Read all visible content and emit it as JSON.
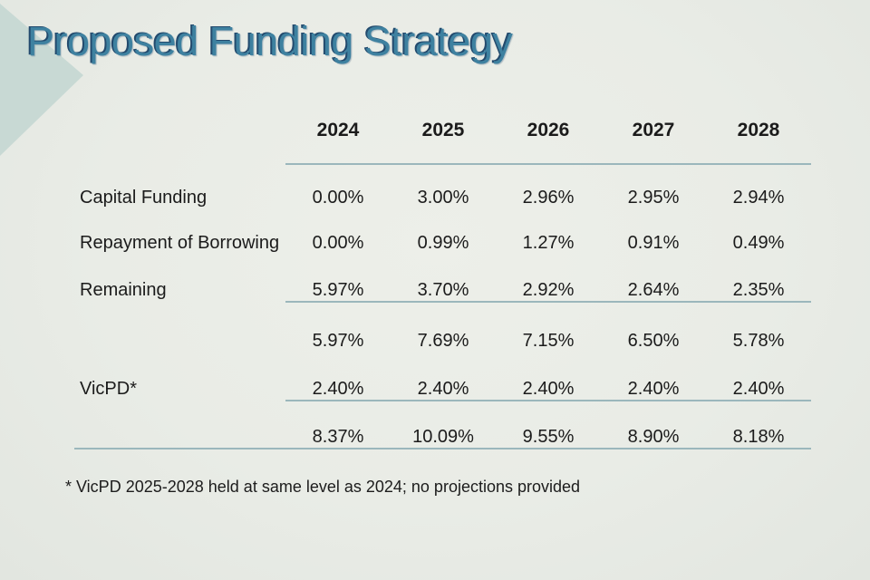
{
  "slide": {
    "title": "Proposed Funding Strategy",
    "footnote": "* VicPD 2025-2028 held at same level as 2024; no projections provided"
  },
  "colors": {
    "background": "#e9ece6",
    "title_text": "#3e81a0",
    "title_shadow": "#234a6d",
    "divider_line": "#9bb7bc",
    "body_text": "#1b1b1b",
    "corner_triangle": "#c8d9d4"
  },
  "table": {
    "years": [
      "2024",
      "2025",
      "2026",
      "2027",
      "2028"
    ],
    "rows": [
      {
        "label": "Capital Funding",
        "values": [
          "0.00%",
          "3.00%",
          "2.96%",
          "2.95%",
          "2.94%"
        ]
      },
      {
        "label": "Repayment of Borrowing",
        "values": [
          "0.00%",
          "0.99%",
          "1.27%",
          "0.91%",
          "0.49%"
        ]
      },
      {
        "label": "Remaining",
        "values": [
          "5.97%",
          "3.70%",
          "2.92%",
          "2.64%",
          "2.35%"
        ]
      },
      {
        "label": "",
        "values": [
          "5.97%",
          "7.69%",
          "7.15%",
          "6.50%",
          "5.78%"
        ]
      },
      {
        "label": "VicPD*",
        "values": [
          "2.40%",
          "2.40%",
          "2.40%",
          "2.40%",
          "2.40%"
        ]
      },
      {
        "label": "",
        "values": [
          "8.37%",
          "10.09%",
          "9.55%",
          "8.90%",
          "8.18%"
        ]
      }
    ]
  }
}
